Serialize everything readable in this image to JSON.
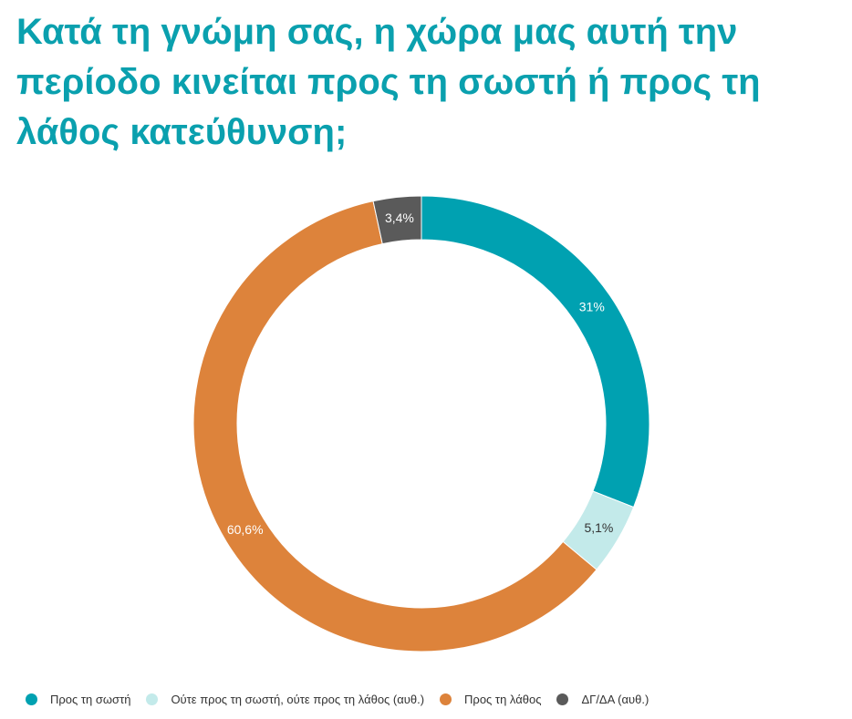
{
  "chart_data": {
    "type": "pie",
    "title": "Κατά τη γνώμη σας, η χώρα μας αυτή την περίοδο κινείται προς τη σωστή ή προς τη λάθος κατεύθυνση;",
    "slices": [
      {
        "label": "Προς τη σωστή",
        "value": 31,
        "value_label": "31%",
        "color": "#00a1b1",
        "text_color": "#ffffff"
      },
      {
        "label": "Ούτε προς τη σωστή, ούτε προς τη λάθος (αυθ.)",
        "value": 5.1,
        "value_label": "5,1%",
        "color": "#c3eaea",
        "text_color": "#333333"
      },
      {
        "label": "Προς τη λάθος",
        "value": 60.6,
        "value_label": "60,6%",
        "color": "#dd833b",
        "text_color": "#ffffff"
      },
      {
        "label": "ΔΓ/ΔΑ (αυθ.)",
        "value": 3.4,
        "value_label": "3,4%",
        "color": "#5a5a5a",
        "text_color": "#ffffff"
      }
    ],
    "donut": true,
    "start_angle": "top",
    "direction": "clockwise",
    "legend_position": "bottom"
  }
}
